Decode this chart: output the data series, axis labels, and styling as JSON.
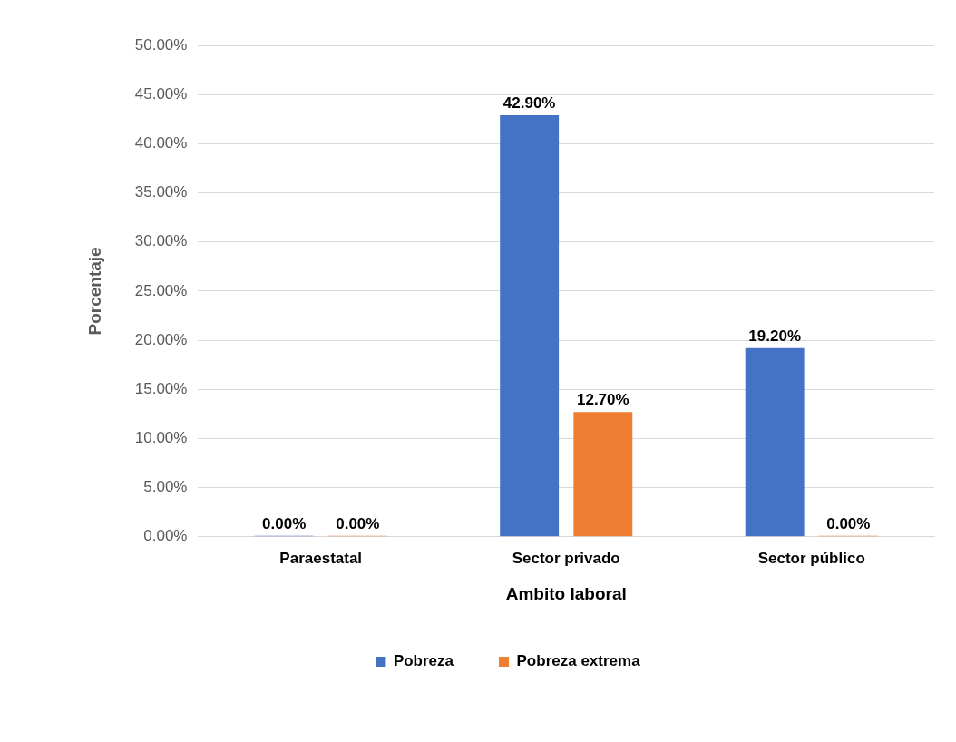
{
  "chart_data": {
    "type": "bar",
    "xlabel": "Ambito laboral",
    "ylabel": "Porcentaje",
    "categories": [
      "Paraestatal",
      "Sector privado",
      "Sector público"
    ],
    "series": [
      {
        "name": "Pobreza",
        "color": "#4472c4",
        "values": [
          0,
          42.9,
          19.2
        ],
        "value_labels": [
          "0.00%",
          "42.90%",
          "19.20%"
        ]
      },
      {
        "name": "Pobreza extrema",
        "color": "#ed7d31",
        "values": [
          0,
          12.7,
          0
        ],
        "value_labels": [
          "0.00%",
          "12.70%",
          "0.00%"
        ]
      }
    ],
    "ylim": [
      0,
      50
    ],
    "yticks": [
      {
        "value": 0,
        "label": "0.00%"
      },
      {
        "value": 5,
        "label": "5.00%"
      },
      {
        "value": 10,
        "label": "10.00%"
      },
      {
        "value": 15,
        "label": "15.00%"
      },
      {
        "value": 20,
        "label": "20.00%"
      },
      {
        "value": 25,
        "label": "25.00%"
      },
      {
        "value": 30,
        "label": "30.00%"
      },
      {
        "value": 35,
        "label": "35.00%"
      },
      {
        "value": 40,
        "label": "40.00%"
      },
      {
        "value": 45,
        "label": "45.00%"
      },
      {
        "value": 50,
        "label": "50.00%"
      }
    ],
    "grid": "y",
    "legend": "bottom"
  }
}
